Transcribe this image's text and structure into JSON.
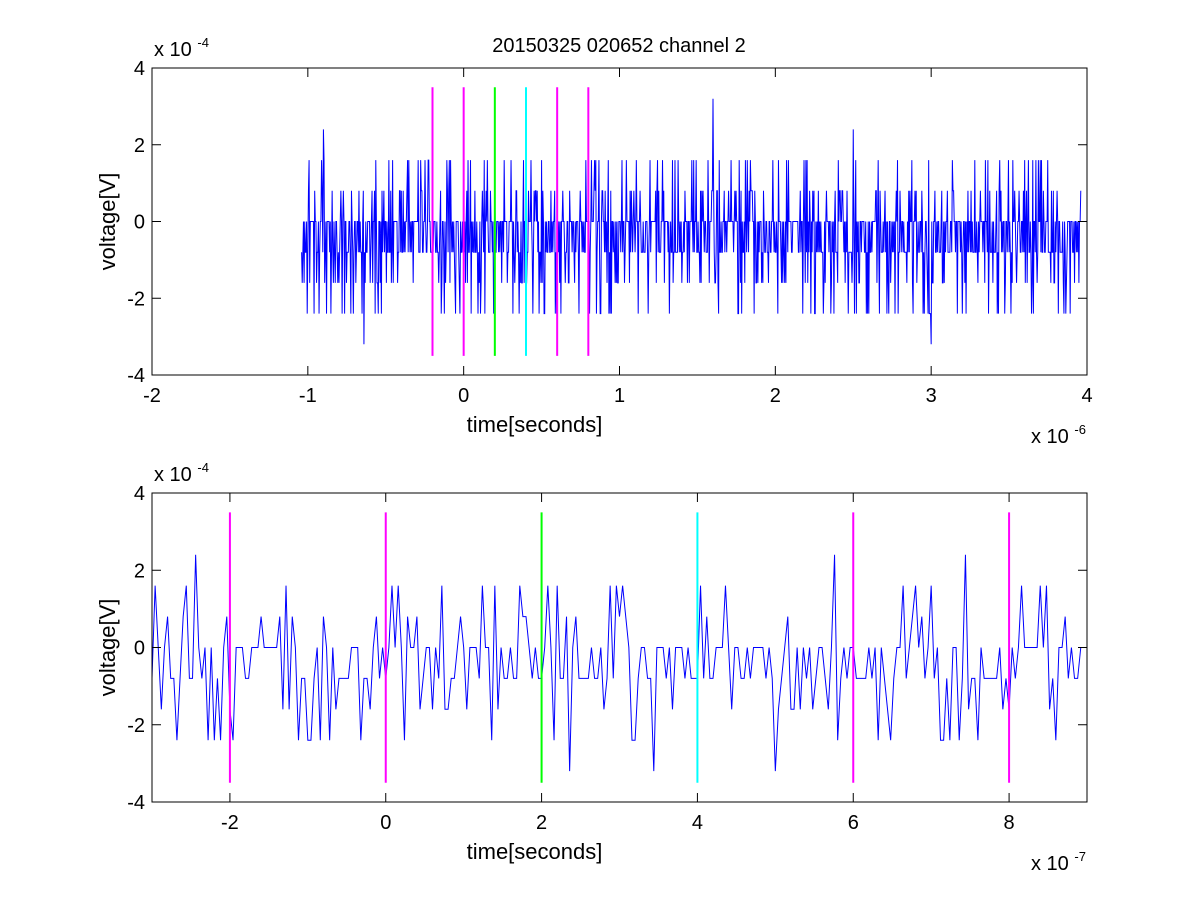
{
  "figure_title": "20150325 020652 channel 2",
  "colors": {
    "signal": "#0000ff",
    "magenta": "#ff00ff",
    "green": "#00ff00",
    "cyan": "#00ffff",
    "axes": "#000000"
  },
  "chart_data": [
    {
      "type": "line",
      "title": "20150325 020652 channel 2",
      "xlabel": "time[seconds]",
      "ylabel": "voltage[V]",
      "xlim": [
        -2e-06,
        4e-06
      ],
      "ylim": [
        -0.0004,
        0.0004
      ],
      "x_ticks": [
        -2e-06,
        -1e-06,
        0,
        1e-06,
        2e-06,
        3e-06,
        4e-06
      ],
      "x_tick_labels": [
        "-2",
        "-1",
        "0",
        "1",
        "2",
        "3",
        "4"
      ],
      "y_ticks": [
        -0.0004,
        -0.0002,
        0,
        0.0002,
        0.0004
      ],
      "y_tick_labels": [
        "-4",
        "-2",
        "0",
        "2",
        "4"
      ],
      "x_exponent_label": "x 10",
      "x_exponent": "-6",
      "y_exponent_label": "x 10",
      "y_exponent": "-4",
      "grid": false,
      "series": [
        {
          "color": "#0000ff",
          "x_start": -1.04e-06,
          "x_end": 3.96e-06,
          "sample_interval": 4e-09,
          "quantization_step": 8e-05,
          "y_min": -0.00032,
          "y_max": 0.00032,
          "notable_peaks": [
            {
              "x": -9e-07,
              "y": 0.00024
            },
            {
              "x": 1.6e-06,
              "y": 0.00032
            },
            {
              "x": 2.5e-06,
              "y": 0.00024
            },
            {
              "x": -6.4e-07,
              "y": -0.00032
            },
            {
              "x": 3e-06,
              "y": -0.00032
            }
          ]
        }
      ],
      "vertical_markers": [
        {
          "x": -2e-07,
          "color": "#ff00ff",
          "y_range": [
            -0.00035,
            0.00035
          ]
        },
        {
          "x": 0,
          "color": "#ff00ff",
          "y_range": [
            -0.00035,
            0.00035
          ]
        },
        {
          "x": 2e-07,
          "color": "#00ff00",
          "y_range": [
            -0.00035,
            0.00035
          ]
        },
        {
          "x": 4e-07,
          "color": "#00ffff",
          "y_range": [
            -0.00035,
            0.00035
          ]
        },
        {
          "x": 6e-07,
          "color": "#ff00ff",
          "y_range": [
            -0.00035,
            0.00035
          ]
        },
        {
          "x": 8e-07,
          "color": "#ff00ff",
          "y_range": [
            -0.00035,
            0.00035
          ]
        }
      ]
    },
    {
      "type": "line",
      "title": "",
      "xlabel": "time[seconds]",
      "ylabel": "voltage[V]",
      "xlim": [
        -3e-07,
        9e-07
      ],
      "ylim": [
        -0.0004,
        0.0004
      ],
      "x_ticks": [
        -2e-07,
        0,
        2e-07,
        4e-07,
        6e-07,
        8e-07
      ],
      "x_tick_labels": [
        "-2",
        "0",
        "2",
        "4",
        "6",
        "8"
      ],
      "y_ticks": [
        -0.0004,
        -0.0002,
        0,
        0.0002,
        0.0004
      ],
      "y_tick_labels": [
        "-4",
        "-2",
        "0",
        "2",
        "4"
      ],
      "x_exponent_label": "x 10",
      "x_exponent": "-7",
      "y_exponent_label": "x 10",
      "y_exponent": "-4",
      "grid": false,
      "series": [
        {
          "color": "#0000ff",
          "x_start": -3e-07,
          "x_end": 9e-07,
          "sample_interval": 4e-09,
          "quantization_step": 8e-05,
          "y_min": -0.00032,
          "y_max": 0.00024,
          "notable_peaks": [
            {
              "x": -2.45e-07,
              "y": 0.00024
            },
            {
              "x": 5.75e-07,
              "y": 0.00024
            },
            {
              "x": 7.45e-07,
              "y": 0.00024
            },
            {
              "x": 2.35e-07,
              "y": -0.00032
            },
            {
              "x": 3.45e-07,
              "y": -0.00032
            },
            {
              "x": 5e-07,
              "y": -0.00032
            }
          ]
        }
      ],
      "vertical_markers": [
        {
          "x": -2e-07,
          "color": "#ff00ff",
          "y_range": [
            -0.00035,
            0.00035
          ]
        },
        {
          "x": 0,
          "color": "#ff00ff",
          "y_range": [
            -0.00035,
            0.00035
          ]
        },
        {
          "x": 2e-07,
          "color": "#00ff00",
          "y_range": [
            -0.00035,
            0.00035
          ]
        },
        {
          "x": 4e-07,
          "color": "#00ffff",
          "y_range": [
            -0.00035,
            0.00035
          ]
        },
        {
          "x": 6e-07,
          "color": "#ff00ff",
          "y_range": [
            -0.00035,
            0.00035
          ]
        },
        {
          "x": 8e-07,
          "color": "#ff00ff",
          "y_range": [
            -0.00035,
            0.00035
          ]
        }
      ]
    }
  ]
}
